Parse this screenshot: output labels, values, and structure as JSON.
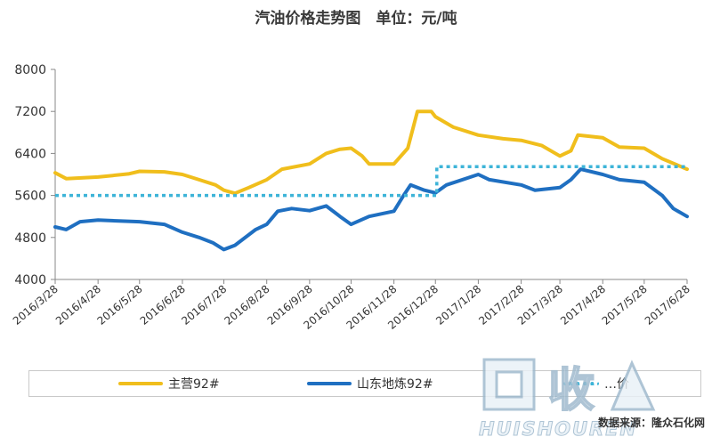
{
  "chart_data": {
    "type": "line",
    "title": "汽油价格走势图　单位：元/吨",
    "ylim": [
      4000,
      8000
    ],
    "yticks": [
      4000,
      4800,
      5600,
      6400,
      7200,
      8000
    ],
    "xlim": [
      "2016-03-28",
      "2017-06-28"
    ],
    "categories": [
      "2016/3/28",
      "2016/4/28",
      "2016/5/28",
      "2016/6/28",
      "2016/7/28",
      "2016/8/28",
      "2016/9/28",
      "2016/10/28",
      "2016/11/28",
      "2016/12/28",
      "2017/1/28",
      "2017/2/28",
      "2017/3/28",
      "2017/4/28",
      "2017/5/28",
      "2017/6/28"
    ],
    "grid": false,
    "legend_position": "bottom",
    "series": [
      {
        "name": "主营92#",
        "color": "#f0be1c",
        "style": "solid",
        "points": [
          [
            "2016-03-28",
            6030
          ],
          [
            "2016-04-05",
            5920
          ],
          [
            "2016-04-28",
            5950
          ],
          [
            "2016-05-20",
            6010
          ],
          [
            "2016-05-28",
            6060
          ],
          [
            "2016-06-15",
            6050
          ],
          [
            "2016-06-28",
            6000
          ],
          [
            "2016-07-10",
            5900
          ],
          [
            "2016-07-22",
            5800
          ],
          [
            "2016-07-28",
            5700
          ],
          [
            "2016-08-05",
            5640
          ],
          [
            "2016-08-15",
            5750
          ],
          [
            "2016-08-28",
            5900
          ],
          [
            "2016-09-08",
            6100
          ],
          [
            "2016-09-28",
            6200
          ],
          [
            "2016-10-10",
            6400
          ],
          [
            "2016-10-20",
            6480
          ],
          [
            "2016-10-28",
            6500
          ],
          [
            "2016-11-05",
            6350
          ],
          [
            "2016-11-10",
            6200
          ],
          [
            "2016-11-28",
            6200
          ],
          [
            "2016-12-08",
            6500
          ],
          [
            "2016-12-15",
            7200
          ],
          [
            "2016-12-25",
            7200
          ],
          [
            "2016-12-28",
            7100
          ],
          [
            "2017-01-10",
            6900
          ],
          [
            "2017-01-28",
            6750
          ],
          [
            "2017-02-15",
            6680
          ],
          [
            "2017-02-28",
            6650
          ],
          [
            "2017-03-15",
            6550
          ],
          [
            "2017-03-28",
            6350
          ],
          [
            "2017-04-05",
            6450
          ],
          [
            "2017-04-10",
            6750
          ],
          [
            "2017-04-28",
            6700
          ],
          [
            "2017-05-10",
            6520
          ],
          [
            "2017-05-28",
            6500
          ],
          [
            "2017-06-10",
            6300
          ],
          [
            "2017-06-28",
            6100
          ]
        ]
      },
      {
        "name": "山东地炼92#",
        "color": "#1f6fc1",
        "style": "solid",
        "points": [
          [
            "2016-03-28",
            5000
          ],
          [
            "2016-04-05",
            4950
          ],
          [
            "2016-04-15",
            5100
          ],
          [
            "2016-04-28",
            5130
          ],
          [
            "2016-05-28",
            5100
          ],
          [
            "2016-06-15",
            5050
          ],
          [
            "2016-06-28",
            4900
          ],
          [
            "2016-07-10",
            4800
          ],
          [
            "2016-07-20",
            4700
          ],
          [
            "2016-07-28",
            4570
          ],
          [
            "2016-08-05",
            4650
          ],
          [
            "2016-08-20",
            4950
          ],
          [
            "2016-08-28",
            5050
          ],
          [
            "2016-09-05",
            5300
          ],
          [
            "2016-09-15",
            5350
          ],
          [
            "2016-09-28",
            5310
          ],
          [
            "2016-10-10",
            5400
          ],
          [
            "2016-10-20",
            5200
          ],
          [
            "2016-10-28",
            5050
          ],
          [
            "2016-11-10",
            5200
          ],
          [
            "2016-11-28",
            5300
          ],
          [
            "2016-12-05",
            5600
          ],
          [
            "2016-12-10",
            5800
          ],
          [
            "2016-12-20",
            5700
          ],
          [
            "2016-12-28",
            5650
          ],
          [
            "2017-01-05",
            5800
          ],
          [
            "2017-01-28",
            6000
          ],
          [
            "2017-02-05",
            5900
          ],
          [
            "2017-02-28",
            5800
          ],
          [
            "2017-03-10",
            5700
          ],
          [
            "2017-03-28",
            5750
          ],
          [
            "2017-04-05",
            5900
          ],
          [
            "2017-04-12",
            6100
          ],
          [
            "2017-04-28",
            6000
          ],
          [
            "2017-05-10",
            5900
          ],
          [
            "2017-05-28",
            5850
          ],
          [
            "2017-06-10",
            5600
          ],
          [
            "2017-06-18",
            5350
          ],
          [
            "2017-06-28",
            5200
          ]
        ]
      },
      {
        "name": "",
        "color": "#3db4d8",
        "style": "dotted",
        "points": [
          [
            "2016-03-28",
            5600
          ],
          [
            "2016-12-29",
            5600
          ],
          [
            "2016-12-29",
            6150
          ],
          [
            "2017-06-28",
            6150
          ]
        ]
      }
    ]
  },
  "legend": {
    "items": [
      {
        "label": "主营92#",
        "color": "#f0be1c"
      },
      {
        "label": "山东地炼92#",
        "color": "#1f6fc1"
      },
      {
        "label": "…价",
        "color": "#3db4d8"
      }
    ]
  },
  "source": "数据来源：隆众石化网",
  "watermark": {
    "mark": "回收",
    "text": "HUISHOUREN"
  }
}
